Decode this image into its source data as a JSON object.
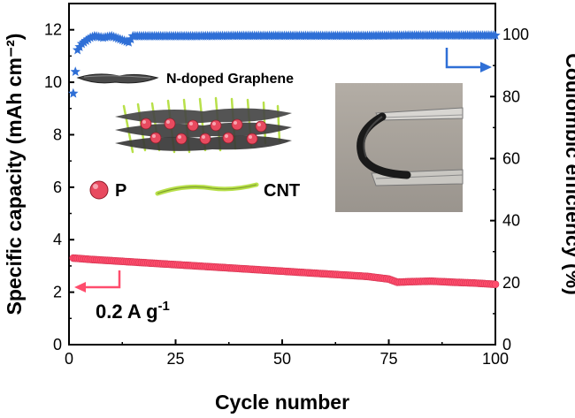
{
  "chart_data": {
    "type": "scatter",
    "xlabel": "Cycle number",
    "ylabel_left": "Specific capacity (mAh cm⁻²)",
    "ylabel_right": "Coulombic efficiency (%)",
    "xlim": [
      0,
      100
    ],
    "ylim_left": [
      0,
      13
    ],
    "ylim_right": [
      0,
      110
    ],
    "x_ticks": [
      "0",
      "25",
      "50",
      "75",
      "100"
    ],
    "y_left_ticks": [
      "0",
      "2",
      "4",
      "6",
      "8",
      "10",
      "12"
    ],
    "y_right_ticks": [
      "0",
      "20",
      "40",
      "60",
      "80",
      "100"
    ],
    "legend": "none",
    "series": [
      {
        "name": "Specific capacity",
        "axis": "left",
        "marker": "circle",
        "color": "#ff4d6d",
        "x": [
          1,
          5,
          10,
          15,
          20,
          25,
          30,
          35,
          40,
          45,
          50,
          55,
          60,
          65,
          70,
          75,
          77,
          80,
          85,
          90,
          95,
          100
        ],
        "y": [
          3.3,
          3.25,
          3.2,
          3.15,
          3.1,
          3.05,
          3.0,
          2.95,
          2.9,
          2.85,
          2.8,
          2.75,
          2.7,
          2.65,
          2.6,
          2.5,
          2.38,
          2.4,
          2.42,
          2.38,
          2.35,
          2.3
        ]
      },
      {
        "name": "Coulombic efficiency",
        "axis": "right",
        "marker": "star",
        "color": "#2f6fd6",
        "x": [
          1,
          2,
          3,
          4,
          5,
          6,
          8,
          10,
          12,
          14,
          15,
          20,
          25,
          30,
          40,
          50,
          60,
          70,
          80,
          90,
          100
        ],
        "y": [
          81,
          95,
          97,
          98,
          99,
          99.5,
          99,
          99.5,
          98.5,
          97.5,
          99.5,
          99.5,
          99.5,
          99.5,
          99.6,
          99.6,
          99.6,
          99.6,
          99.7,
          99.7,
          99.7
        ]
      }
    ],
    "annotations": {
      "graphene_label": "N-doped Graphene",
      "p_label": "P",
      "cnt_label": "CNT",
      "current_density": "0.2 A g",
      "current_density_sup": "-1"
    },
    "colors": {
      "capacity": "#ff4d6d",
      "efficiency": "#2f6fd6",
      "cnt": "#b8e04a",
      "graphene": "#4a4a4a",
      "photo_bg": "#aaa49c"
    }
  }
}
